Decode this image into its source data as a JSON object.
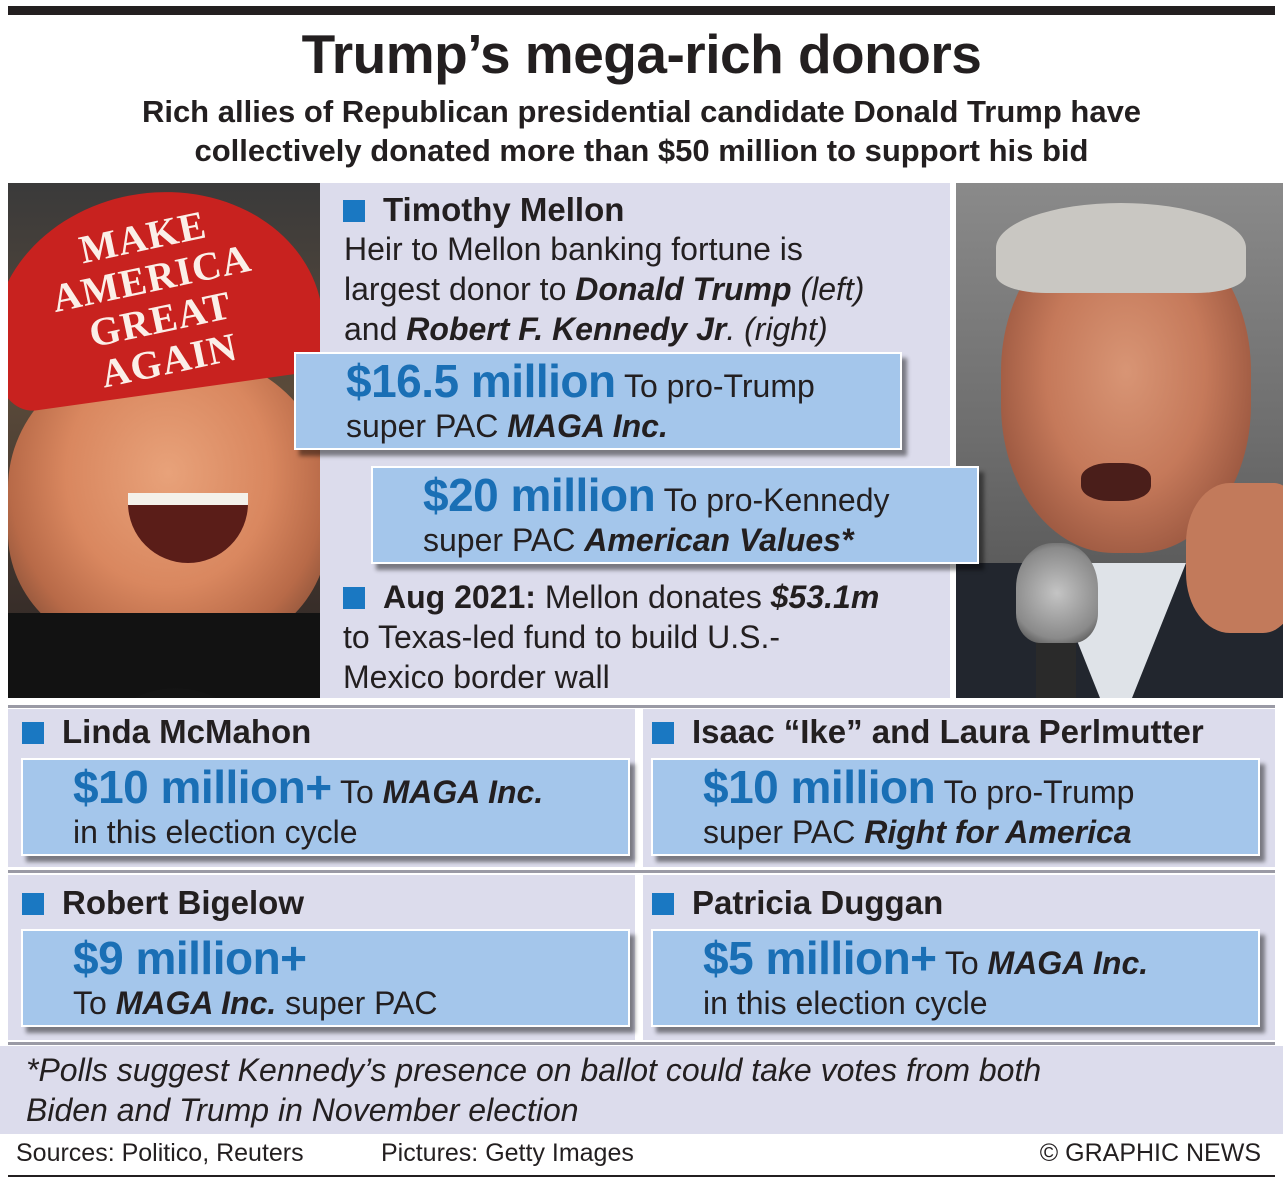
{
  "header": {
    "title": "Trump’s mega-rich donors",
    "subtitle_line1": "Rich allies of Republican presidential candidate Donald Trump have",
    "subtitle_line2": "collectively donated more than $50 million to support his bid"
  },
  "photos": {
    "left_cap_line1": "MAKE AMERICA",
    "left_cap_line2": "GREAT AGAIN"
  },
  "mellon": {
    "name": "Timothy Mellon",
    "desc_line1": "Heir to Mellon banking fortune is",
    "desc_line2_a": "largest donor to ",
    "desc_line2_b": "Donald Trump",
    "desc_line2_c": " (left)",
    "desc_line3_a": "and ",
    "desc_line3_b": "Robert F. Kennedy Jr",
    "desc_line3_c": ". (right)",
    "box1_amount": "$16.5 million",
    "box1_text_a": " To pro-Trump",
    "box1_text_b": "super PAC ",
    "box1_text_c": "MAGA Inc.",
    "box2_amount": "$20 million",
    "box2_text_a": " To pro-Kennedy",
    "box2_text_b": "super PAC ",
    "box2_text_c": "American Values*",
    "aug_date": "Aug 2021:",
    "aug_text_a": " Mellon donates ",
    "aug_amount": "$53.1m",
    "aug_line2": "to Texas-led fund to build U.S.-",
    "aug_line3": "Mexico border wall"
  },
  "donors": {
    "mcmahon": {
      "name": "Linda McMahon",
      "amount": "$10 million+",
      "text_a": " To ",
      "text_b": "MAGA Inc.",
      "line2": "in this election cycle"
    },
    "perlmutter": {
      "name": "Isaac “Ike” and Laura Perlmutter",
      "amount": "$10 million",
      "text_a": " To pro-Trump",
      "line2_a": "super PAC ",
      "line2_b": "Right for America"
    },
    "bigelow": {
      "name": "Robert Bigelow",
      "amount": "$9 million+",
      "line2_a": "To ",
      "line2_b": "MAGA Inc.",
      "line2_c": " super PAC"
    },
    "duggan": {
      "name": "Patricia Duggan",
      "amount": "$5 million+",
      "text_a": " To ",
      "text_b": "MAGA Inc.",
      "line2": "in this election cycle"
    }
  },
  "footnote": {
    "line1": "*Polls suggest Kennedy’s presence on ballot could take votes from both",
    "line2": "Biden and Trump in November election"
  },
  "footer": {
    "sources": "Sources: Politico, Reuters",
    "pictures": "Pictures: Getty Images",
    "credit": "© GRAPHIC NEWS"
  },
  "colors": {
    "accent_blue": "#1a78c2",
    "amount_blue": "#1a6fb5",
    "box_fill": "#a4c6eb",
    "panel_fill": "#dcdcec"
  }
}
